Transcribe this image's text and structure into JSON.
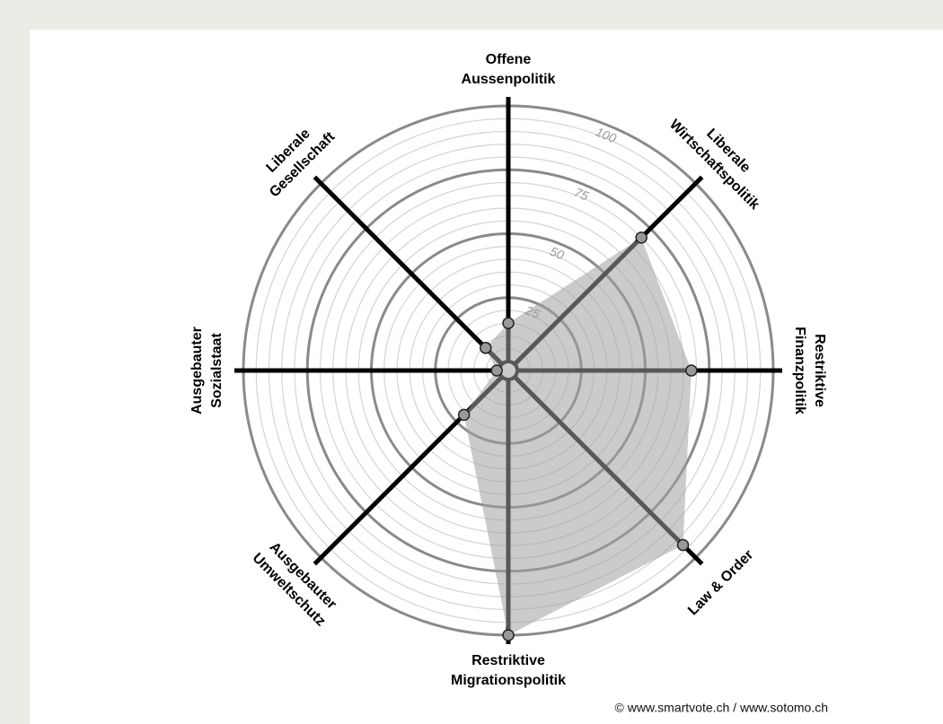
{
  "chart_data": {
    "type": "radar",
    "categories": [
      [
        "Offene",
        "Aussenpolitik"
      ],
      [
        "Liberale",
        "Wirtschaftspolitik"
      ],
      [
        "Restriktive",
        "Finanzpolitik"
      ],
      [
        "Law & Order"
      ],
      [
        "Restriktive",
        "Migrationspolitik"
      ],
      [
        "Ausgebauter",
        "Umweltschutz"
      ],
      [
        "Ausgebauter",
        "Sozialstaat"
      ],
      [
        "Liberale",
        "Gesellschaft"
      ]
    ],
    "values": [
      15,
      70,
      68,
      93,
      100,
      21,
      1,
      9
    ],
    "color": "#a0a0a0",
    "rlim": [
      0,
      100
    ],
    "rticks": [
      25,
      50,
      75,
      100
    ],
    "minor_ticks": [
      5,
      10,
      15,
      20,
      30,
      35,
      40,
      45,
      55,
      60,
      65,
      70,
      80,
      85,
      90,
      95
    ],
    "grid": true,
    "credit": "© www.smartvote.ch / www.sotomo.ch"
  }
}
